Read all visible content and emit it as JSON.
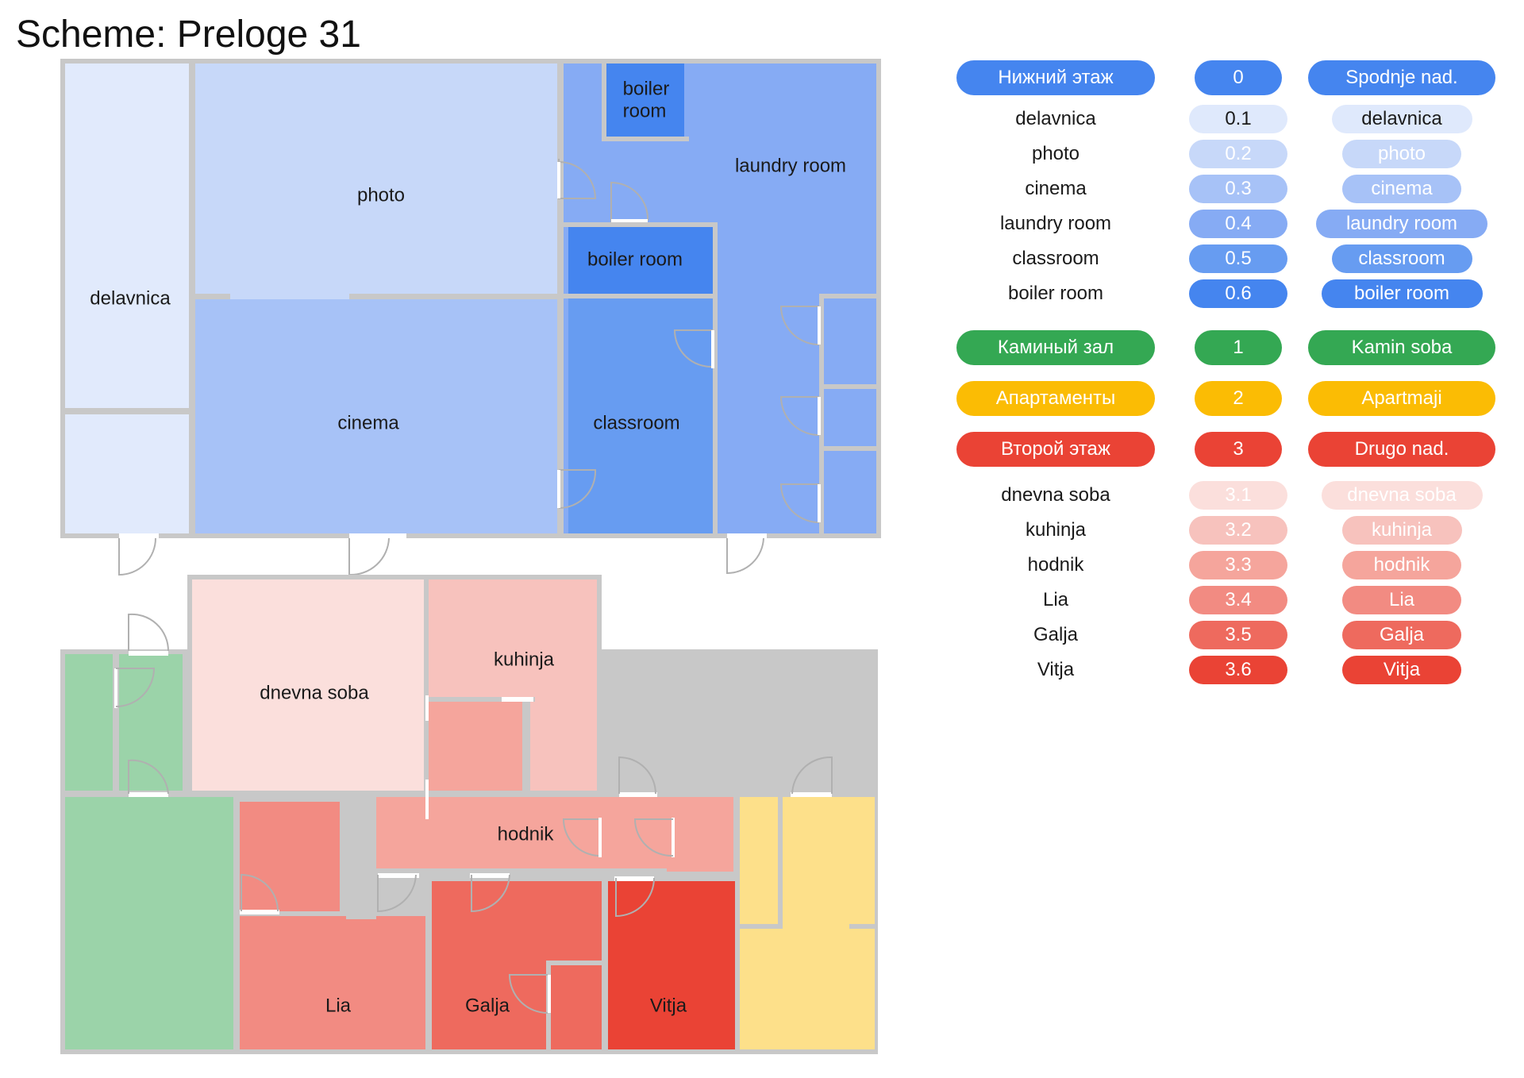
{
  "title": "Scheme: Preloge 31",
  "colors": {
    "wall": "#c8c8c8",
    "blue_header": "#4585ef",
    "green_header": "#34a853",
    "yellow_header": "#fbbc04",
    "red_header": "#ea4335"
  },
  "rooms": {
    "delavnica": "delavnica",
    "photo": "photo",
    "boiler_room": "boiler room",
    "boiler_room_small": "boiler room",
    "laundry_room": "laundry room",
    "cinema": "cinema",
    "classroom": "classroom",
    "dnevna_soba": "dnevna soba",
    "kuhinja": "kuhinja",
    "hodnik": "hodnik",
    "lia": "Lia",
    "galja": "Galja",
    "vitja": "Vitja"
  },
  "legend": [
    {
      "group": "blue",
      "ru": "Нижний этаж",
      "num": "0",
      "sl": "Spodnje nad.",
      "is_header": true
    },
    {
      "group": "blue",
      "ru": "delavnica",
      "num": "0.1",
      "sl": "delavnica"
    },
    {
      "group": "blue",
      "ru": "photo",
      "num": "0.2",
      "sl": "photo"
    },
    {
      "group": "blue",
      "ru": "cinema",
      "num": "0.3",
      "sl": "cinema"
    },
    {
      "group": "blue",
      "ru": "laundry room",
      "num": "0.4",
      "sl": "laundry room"
    },
    {
      "group": "blue",
      "ru": "classroom",
      "num": "0.5",
      "sl": "classroom"
    },
    {
      "group": "blue",
      "ru": "boiler room",
      "num": "0.6",
      "sl": "boiler room"
    },
    {
      "group": "green",
      "ru": "Каминый зал",
      "num": "1",
      "sl": "Kamin soba",
      "is_header": true
    },
    {
      "group": "yellow",
      "ru": "Апартаменты",
      "num": "2",
      "sl": "Apartmaji",
      "is_header": true
    },
    {
      "group": "red",
      "ru": "Второй этаж",
      "num": "3",
      "sl": "Drugo nad.",
      "is_header": true
    },
    {
      "group": "red",
      "ru": "dnevna soba",
      "num": "3.1",
      "sl": "dnevna soba"
    },
    {
      "group": "red",
      "ru": "kuhinja",
      "num": "3.2",
      "sl": "kuhinja"
    },
    {
      "group": "red",
      "ru": "hodnik",
      "num": "3.3",
      "sl": "hodnik"
    },
    {
      "group": "red",
      "ru": "Lia",
      "num": "3.4",
      "sl": "Lia"
    },
    {
      "group": "red",
      "ru": "Galja",
      "num": "3.5",
      "sl": "Galja"
    },
    {
      "group": "red",
      "ru": "Vitja",
      "num": "3.6",
      "sl": "Vitja"
    }
  ]
}
